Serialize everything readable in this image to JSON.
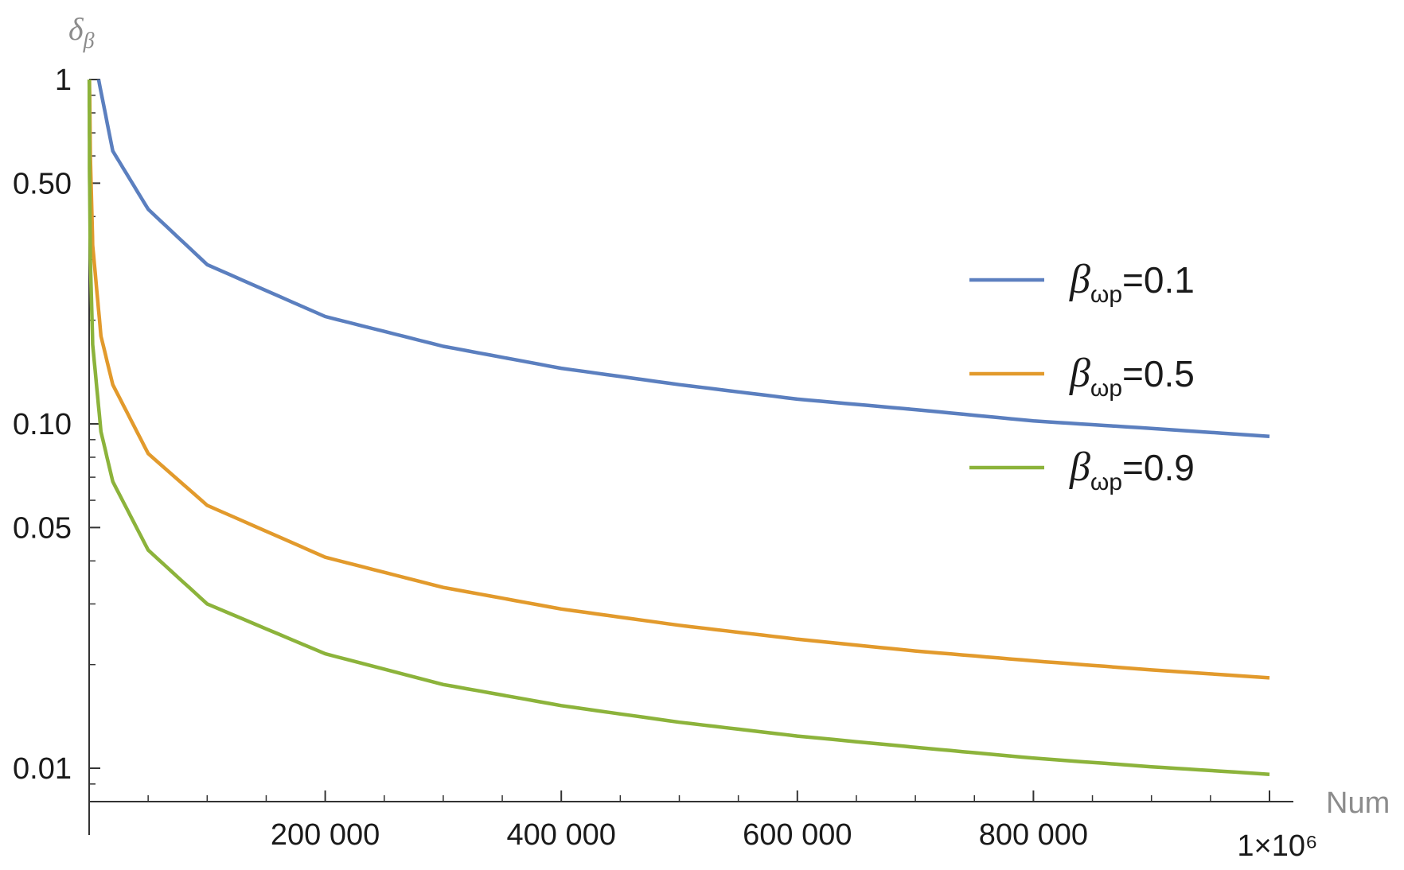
{
  "chart_data": {
    "type": "line",
    "title": "",
    "xlabel": "Num",
    "ylabel": "δ_β",
    "y_scale": "log",
    "xlim": [
      0,
      1000000
    ],
    "ylim": [
      0.008,
      1
    ],
    "x_ticks": [
      {
        "value": 200000,
        "label": "200 000"
      },
      {
        "value": 400000,
        "label": "400 000"
      },
      {
        "value": 600000,
        "label": "600 000"
      },
      {
        "value": 800000,
        "label": "800 000"
      },
      {
        "value": 1000000,
        "label": "1×10⁶"
      }
    ],
    "y_ticks": [
      {
        "value": 1,
        "label": "1"
      },
      {
        "value": 0.5,
        "label": "0.50"
      },
      {
        "value": 0.1,
        "label": "0.10"
      },
      {
        "value": 0.05,
        "label": "0.05"
      },
      {
        "value": 0.01,
        "label": "0.01"
      }
    ],
    "grid": false,
    "legend_position": "right",
    "series": [
      {
        "legend_main": "β",
        "legend_sub": "ωp",
        "legend_value": "=0.1",
        "color": "#5b7fbf",
        "x": [
          8000,
          20000,
          50000,
          100000,
          200000,
          300000,
          400000,
          500000,
          600000,
          700000,
          800000,
          900000,
          1000000
        ],
        "y": [
          1.0,
          0.62,
          0.42,
          0.29,
          0.205,
          0.168,
          0.145,
          0.13,
          0.118,
          0.11,
          0.102,
          0.097,
          0.092
        ]
      },
      {
        "legend_main": "β",
        "legend_sub": "ωp",
        "legend_value": "=0.5",
        "color": "#e29a2c",
        "x": [
          300,
          1000,
          3000,
          10000,
          20000,
          50000,
          100000,
          200000,
          300000,
          400000,
          500000,
          600000,
          700000,
          800000,
          900000,
          1000000
        ],
        "y": [
          1.0,
          0.6,
          0.33,
          0.18,
          0.13,
          0.082,
          0.058,
          0.041,
          0.0335,
          0.029,
          0.026,
          0.0237,
          0.0219,
          0.0205,
          0.0193,
          0.0183
        ]
      },
      {
        "legend_main": "β",
        "legend_sub": "ωp",
        "legend_value": "=0.9",
        "color": "#8cb33b",
        "x": [
          100,
          300,
          1000,
          3000,
          10000,
          20000,
          50000,
          100000,
          200000,
          300000,
          400000,
          500000,
          600000,
          700000,
          800000,
          900000,
          1000000
        ],
        "y": [
          1.0,
          0.55,
          0.3,
          0.17,
          0.095,
          0.068,
          0.043,
          0.03,
          0.0215,
          0.0175,
          0.0152,
          0.0136,
          0.0124,
          0.0115,
          0.0107,
          0.0101,
          0.0096
        ]
      }
    ]
  }
}
